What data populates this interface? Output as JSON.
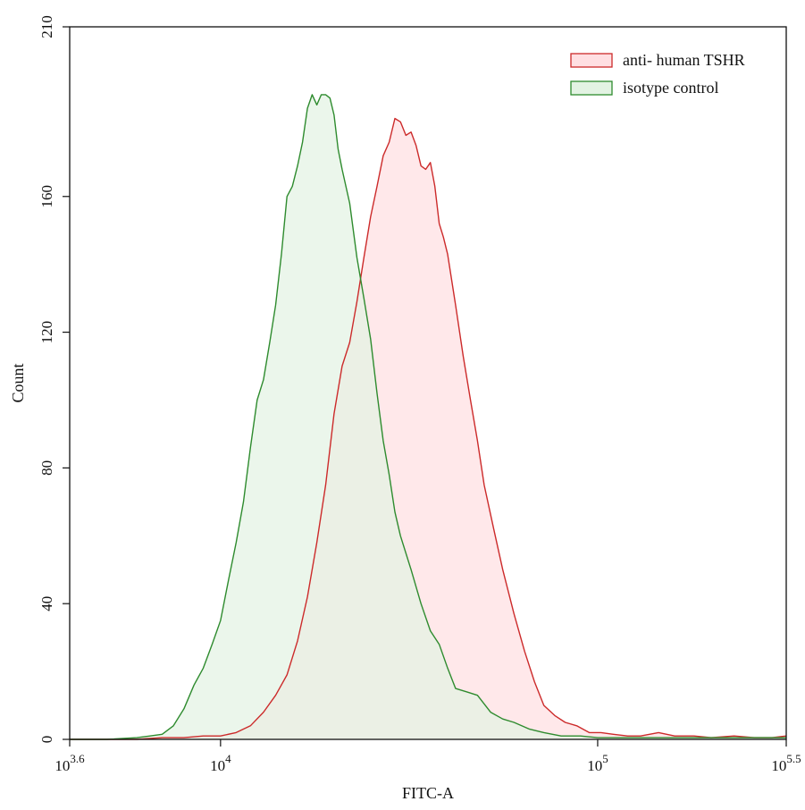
{
  "chart_data": {
    "type": "area",
    "xlabel": "FITC-A",
    "ylabel": "Count",
    "x_scale": "log10",
    "xlim": [
      3981,
      316228
    ],
    "ylim": [
      0,
      210
    ],
    "grid": false,
    "legend_position": "top-right",
    "x_ticks": [
      {
        "value": 3981,
        "base": "10",
        "exp": "3.6"
      },
      {
        "value": 10000,
        "base": "10",
        "exp": "4"
      },
      {
        "value": 100000,
        "base": "10",
        "exp": "5"
      },
      {
        "value": 316228,
        "base": "10",
        "exp": "5.5"
      }
    ],
    "y_ticks": [
      0,
      40,
      80,
      120,
      160,
      210
    ],
    "series": [
      {
        "name": "anti- human TSHR",
        "stroke": "#cc2a2a",
        "fill": "#ffdfe2",
        "x": [
          3981,
          5000,
          6000,
          7000,
          8000,
          9000,
          10000,
          11000,
          12000,
          13000,
          14000,
          15000,
          16000,
          17000,
          18000,
          19000,
          20000,
          21000,
          22000,
          23000,
          24000,
          25000,
          26000,
          27000,
          28000,
          29000,
          30000,
          31000,
          32000,
          33000,
          34000,
          35000,
          36000,
          37000,
          38000,
          39000,
          40000,
          42000,
          44000,
          46000,
          48000,
          50000,
          53000,
          56000,
          60000,
          64000,
          68000,
          72000,
          77000,
          82000,
          88000,
          95000,
          102000,
          110000,
          120000,
          130000,
          145000,
          160000,
          180000,
          200000,
          230000,
          260000,
          290000,
          316228
        ],
        "y": [
          0,
          0,
          0,
          0.5,
          0.5,
          1,
          1,
          2,
          4,
          8,
          13,
          19,
          29,
          42,
          58,
          75,
          96,
          110,
          117,
          129,
          142,
          154,
          163,
          172,
          176,
          183,
          182,
          178,
          179,
          175,
          169,
          168,
          170,
          163,
          152,
          148,
          143,
          128,
          113,
          100,
          88,
          75,
          62,
          50,
          37,
          26,
          17,
          10,
          7,
          5,
          4,
          2,
          2,
          1.5,
          1,
          1,
          2,
          1,
          1,
          0.5,
          1,
          0.5,
          0.5,
          1
        ]
      },
      {
        "name": "isotype control",
        "stroke": "#2e8b2e",
        "fill": "#e3f3e3",
        "x": [
          3981,
          5000,
          6000,
          6500,
          7000,
          7500,
          8000,
          8500,
          9000,
          9500,
          10000,
          10500,
          11000,
          11500,
          12000,
          12500,
          13000,
          13500,
          14000,
          14500,
          15000,
          15500,
          16000,
          16500,
          17000,
          17500,
          18000,
          18500,
          19000,
          19500,
          20000,
          20500,
          21000,
          22000,
          23000,
          24000,
          25000,
          26000,
          27000,
          28000,
          29000,
          30000,
          32000,
          34000,
          36000,
          38000,
          40000,
          42000,
          45000,
          48000,
          52000,
          56000,
          60000,
          66000,
          72000,
          80000,
          90000,
          100000,
          120000,
          150000,
          200000,
          250000,
          290000,
          316228
        ],
        "y": [
          0,
          0,
          0.5,
          1,
          1.5,
          4,
          9,
          16,
          21,
          28,
          35,
          47,
          58,
          70,
          86,
          100,
          106,
          117,
          128,
          143,
          160,
          163,
          169,
          176,
          186,
          190,
          187,
          190,
          190,
          189,
          184,
          174,
          168,
          158,
          142,
          130,
          118,
          102,
          88,
          78,
          67,
          60,
          50,
          40,
          32,
          28,
          21,
          15,
          14,
          13,
          8,
          6,
          5,
          3,
          2,
          1,
          1,
          0.5,
          0.5,
          0.5,
          0.5,
          0.5,
          0.5,
          0.5
        ]
      }
    ]
  }
}
